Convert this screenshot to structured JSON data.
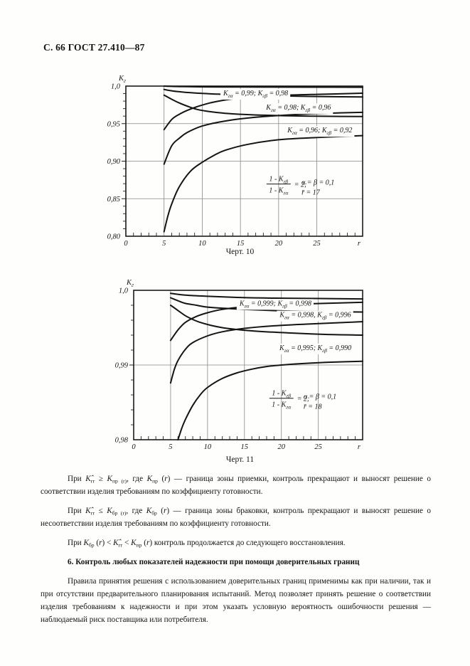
{
  "page": {
    "header": "С. 66 ГОСТ 27.410—87"
  },
  "section_heading": "6. Контроль любых показателей надежности при помощи доверительных границ",
  "paragraphs": [
    "При  *К̂*_{гr} ≥ *К*_{пр (r)}, где *К*_{пр} (*r*) — граница зоны приемки, контроль прекращают и выносят решение о соответствии изделия требованиям по коэффициенту готовности.",
    "При  *К̂*_{гr} ≤ *К*_{бр (r)}, где *К*_{бр} (*r*) — граница зоны браковки, контроль прекращают и выносят решение о несоответствии изделия требованиям по коэффициенту готовности.",
    "При  *К*_{бр} (*r*) < *К̂*_{гr} < *К*_{пр} (*r*)  контроль продолжается до следующего восстановления.",
    "Правила принятия решения с использованием доверительных границ применимы как при наличии, так и при отсутствии предварительного планирования испытаний. Метод позволяет принять решение о соответствии изделия требованиям к надежности и при этом указать условную вероятность ошибочности решения — наблюдаемый риск поставщика или потребителя."
  ],
  "chart_data": [
    {
      "type": "line",
      "title": "Черт. 10",
      "ylabel": "К_{г}",
      "xlabel": "r",
      "xlim": [
        0,
        31
      ],
      "ylim": [
        0.8,
        1.0
      ],
      "xticks": [
        0,
        5,
        10,
        15,
        20,
        25
      ],
      "xtick_labels": [
        "0",
        "5",
        "10",
        "15",
        "20",
        "25"
      ],
      "yticks": [
        0.8,
        0.85,
        0.9,
        0.95,
        1.0
      ],
      "ytick_labels": [
        "0,80",
        "0,85",
        "0,90",
        "0,95",
        "1,0"
      ],
      "x_minor_step": 1,
      "y_minor_step": 0.01,
      "grid_x": [
        5,
        10,
        15,
        20,
        25
      ],
      "grid_y": [
        0.85,
        0.9,
        0.95
      ],
      "series": [
        {
          "name": "К_пр (К_гα=0,99)",
          "points": [
            [
              5,
              1.0
            ],
            [
              6,
              0.9996
            ],
            [
              8,
              0.9992
            ],
            [
              10,
              0.999
            ],
            [
              14,
              0.9988
            ],
            [
              18,
              0.9987
            ],
            [
              24,
              0.9986
            ],
            [
              31,
              0.9985
            ]
          ]
        },
        {
          "name": "К_бр (К_гβ=0,98)",
          "points": [
            [
              5,
              0.942
            ],
            [
              6,
              0.9555
            ],
            [
              7,
              0.9625
            ],
            [
              8,
              0.9675
            ],
            [
              9.3,
              0.9725
            ],
            [
              11,
              0.9775
            ],
            [
              13,
              0.9815
            ],
            [
              16,
              0.985
            ],
            [
              20,
              0.9875
            ],
            [
              25,
              0.989
            ],
            [
              31,
              0.9905
            ]
          ]
        },
        {
          "name": "К_пр (К_гα=0,98)",
          "points": [
            [
              5,
              0.9955
            ],
            [
              6,
              0.9937
            ],
            [
              7,
              0.9925
            ],
            [
              8.5,
              0.9912
            ],
            [
              10,
              0.9902
            ],
            [
              12,
              0.9893
            ],
            [
              15,
              0.9882
            ],
            [
              19,
              0.9872
            ],
            [
              24,
              0.9863
            ],
            [
              31,
              0.9855
            ]
          ]
        },
        {
          "name": "К_бр (К_гβ=0,96)",
          "points": [
            [
              5,
              0.896
            ],
            [
              6,
              0.9205
            ],
            [
              7,
              0.9305
            ],
            [
              8,
              0.938
            ],
            [
              10,
              0.9468
            ],
            [
              13,
              0.9535
            ],
            [
              17,
              0.9585
            ],
            [
              22,
              0.962
            ],
            [
              27,
              0.964
            ],
            [
              31,
              0.965
            ]
          ]
        },
        {
          "name": "К_пр (К_гα=0,96)",
          "points": [
            [
              5,
              0.988
            ],
            [
              6,
              0.9825
            ],
            [
              7,
              0.9775
            ],
            [
              8,
              0.9735
            ],
            [
              9.3,
              0.969
            ],
            [
              11,
              0.966
            ],
            [
              13,
              0.9638
            ],
            [
              15,
              0.9625
            ],
            [
              18,
              0.9612
            ],
            [
              22,
              0.9603
            ],
            [
              26,
              0.9598
            ],
            [
              31,
              0.9595
            ]
          ]
        },
        {
          "name": "К_бр (К_гβ=0,92)",
          "points": [
            [
              5,
              0.806
            ],
            [
              5.5,
              0.827
            ],
            [
              6,
              0.843
            ],
            [
              7,
              0.866
            ],
            [
              8.5,
              0.887
            ],
            [
              10,
              0.8985
            ],
            [
              11.5,
              0.9075
            ],
            [
              13,
              0.9145
            ],
            [
              16,
              0.9225
            ],
            [
              20,
              0.9285
            ],
            [
              25,
              0.9315
            ],
            [
              31,
              0.934
            ]
          ]
        }
      ],
      "curve_labels": [
        {
          "text": "К_{гα} = 0,99;  К_{гβ} = 0,98",
          "x": 17,
          "y": 0.9905
        },
        {
          "text": "К_{гα} = 0,98;  К_{гβ} = 0,96",
          "x": 22.6,
          "y": 0.9715
        },
        {
          "text": "К_{гα} = 0,96;  К_{гβ} = 0,92",
          "x": 25.4,
          "y": 0.941
        }
      ],
      "annotation": {
        "num": "1 - К_{гβ}",
        "den": "1 - К_{гα}",
        "eq": "= 2;",
        "side1": "α = β = 0,1",
        "side2": "r̄ = 17",
        "x": 20,
        "y": 0.8695,
        "x2": 23
      }
    },
    {
      "type": "line",
      "title": "Черт. 11",
      "ylabel": "К_{г}",
      "xlabel": "r",
      "xlim": [
        0,
        31
      ],
      "ylim": [
        0.98,
        1.0
      ],
      "xticks": [
        0,
        5,
        10,
        15,
        20,
        25
      ],
      "xtick_labels": [
        "0",
        "5",
        "10",
        "15",
        "20",
        "25"
      ],
      "yticks": [
        0.98,
        0.99,
        1.0
      ],
      "ytick_labels": [
        "0,98",
        "0,99",
        "1,0"
      ],
      "x_minor_step": 1,
      "y_minor_step": 0.002,
      "grid_x": [
        5,
        10,
        15,
        20,
        25
      ],
      "grid_y": [
        0.99
      ],
      "series": [
        {
          "name": "К_пр (К_гα=0,999)",
          "points": [
            [
              5,
              0.9996
            ],
            [
              7,
              0.99935
            ],
            [
              10,
              0.9992
            ],
            [
              14,
              0.99905
            ],
            [
              19,
              0.99895
            ],
            [
              25,
              0.9989
            ],
            [
              31,
              0.99885
            ]
          ]
        },
        {
          "name": "К_бр (К_гβ=0,998)",
          "points": [
            [
              5,
              0.9933
            ],
            [
              6,
              0.9947
            ],
            [
              7,
              0.9957
            ],
            [
              8.5,
              0.9965
            ],
            [
              10,
              0.997
            ],
            [
              12,
              0.99745
            ],
            [
              15,
              0.9978
            ],
            [
              19,
              0.99805
            ],
            [
              24,
              0.9982
            ],
            [
              31,
              0.9984
            ]
          ]
        },
        {
          "name": "К_пр (К_гα=0,998)",
          "points": [
            [
              5,
              0.999
            ],
            [
              6,
              0.9986
            ],
            [
              7,
              0.99825
            ],
            [
              8.5,
              0.998
            ],
            [
              10,
              0.99775
            ],
            [
              13,
              0.99755
            ],
            [
              16,
              0.9974
            ],
            [
              20,
              0.99725
            ],
            [
              25,
              0.99715
            ],
            [
              31,
              0.9971
            ]
          ]
        },
        {
          "name": "К_бр (К_гβ=0,996)",
          "points": [
            [
              5,
              0.9876
            ],
            [
              5.5,
              0.9894
            ],
            [
              6,
              0.9906
            ],
            [
              7,
              0.9921
            ],
            [
              8,
              0.993
            ],
            [
              10,
              0.9939
            ],
            [
              12,
              0.99445
            ],
            [
              15,
              0.9949
            ],
            [
              19,
              0.99525
            ],
            [
              24,
              0.9955
            ],
            [
              31,
              0.9958
            ]
          ]
        },
        {
          "name": "К_пр (К_гα=0,995)",
          "points": [
            [
              5,
              0.998
            ],
            [
              6,
              0.9973
            ],
            [
              7,
              0.9966
            ],
            [
              8,
              0.9961
            ],
            [
              9,
              0.9957
            ],
            [
              10.5,
              0.9953
            ],
            [
              12,
              0.995
            ],
            [
              14,
              0.99475
            ],
            [
              17,
              0.9945
            ],
            [
              21,
              0.9943
            ],
            [
              26,
              0.9941
            ],
            [
              31,
              0.994
            ]
          ]
        },
        {
          "name": "К_бр (К_гβ=0,990)",
          "points": [
            [
              6,
              0.98
            ],
            [
              6.5,
              0.9815
            ],
            [
              7,
              0.9827
            ],
            [
              8,
              0.9846
            ],
            [
              9,
              0.986
            ],
            [
              10,
              0.987
            ],
            [
              12,
              0.9882
            ],
            [
              14,
              0.98895
            ],
            [
              16,
              0.98945
            ],
            [
              18,
              0.9898
            ],
            [
              20,
              0.99
            ],
            [
              23,
              0.9902
            ],
            [
              26,
              0.99035
            ],
            [
              31,
              0.9905
            ]
          ]
        }
      ],
      "curve_labels": [
        {
          "text": "К_{гα} = 0,999;  К_{гβ} = 0,998",
          "x": 19.2,
          "y": 0.99825
        },
        {
          "text": "К_{гα} = 0,998,  К_{гβ} = 0,996",
          "x": 24.6,
          "y": 0.9967
        },
        {
          "text": "К_{гα} = 0,995;  К_{гβ} = 0,990",
          "x": 24.6,
          "y": 0.9923
        }
      ],
      "annotation": {
        "num": "1 - К_{гβ}",
        "den": "1 - К_{гα}",
        "eq": "= 2;",
        "side1": "α = β = 0,1",
        "side2": "r̄ = 18",
        "x": 20,
        "y": 0.98555,
        "x2": 23
      }
    }
  ]
}
